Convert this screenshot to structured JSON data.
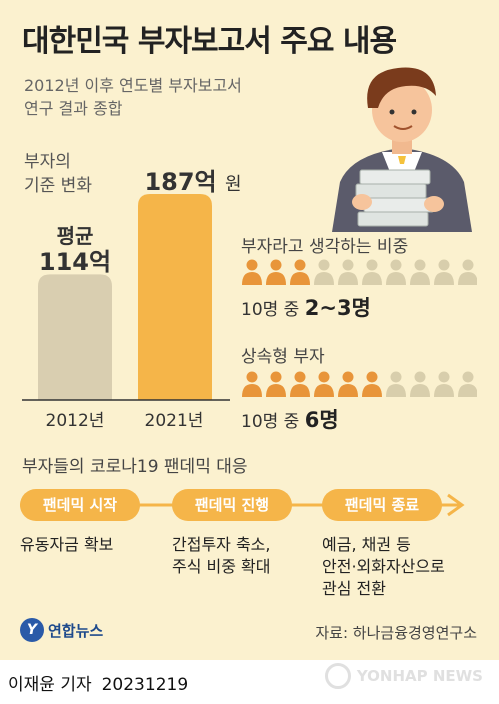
{
  "header": {
    "title": "대한민국 부자보고서 주요 내용",
    "subtitle_line1": "2012년 이후 연도별 부자보고서",
    "subtitle_line2": "연구 결과 종합"
  },
  "chart_data": [
    {
      "type": "bar",
      "title": "부자의 기준 변화",
      "title_line1": "부자의",
      "title_line2": "기준 변화",
      "categories": [
        "2012년",
        "2021년"
      ],
      "values": [
        114,
        187
      ],
      "unit": "억",
      "avg_label": "평균",
      "value_labels": [
        "114억",
        "187억"
      ],
      "value_unit_suffix": "원",
      "ylim": [
        0,
        187
      ],
      "colors": [
        "#d9ceb0",
        "#f5b549"
      ]
    },
    {
      "type": "pictogram",
      "title": "부자라고 생각하는 비중",
      "total": 10,
      "highlighted": 3,
      "prefix": "10명 중",
      "value_text": "2~3명"
    },
    {
      "type": "pictogram",
      "title": "상속형 부자",
      "total": 10,
      "highlighted": 6,
      "prefix": "10명 중",
      "value_text": "6명"
    }
  ],
  "colors": {
    "accent": "#f5b549",
    "icon_on": "#e8953a",
    "icon_off": "#d8ceac",
    "background": "#fbf1cf"
  },
  "pandemic": {
    "title": "부자들의 코로나19 팬데믹 대응",
    "phases": [
      {
        "label": "팬데믹 시작",
        "desc": [
          "유동자금 확보"
        ]
      },
      {
        "label": "팬데믹 진행",
        "desc": [
          "간접투자 축소,",
          "주식 비중 확대"
        ]
      },
      {
        "label": "팬데믹 종료",
        "desc": [
          "예금, 채권 등",
          "안전·외화자산으로",
          "관심 전환"
        ]
      }
    ]
  },
  "footer": {
    "logo_text": "연합뉴스",
    "source": "자료: 하나금융경영연구소",
    "reporter": "이재윤 기자",
    "date": "20231219",
    "watermark": "YONHAP NEWS"
  }
}
